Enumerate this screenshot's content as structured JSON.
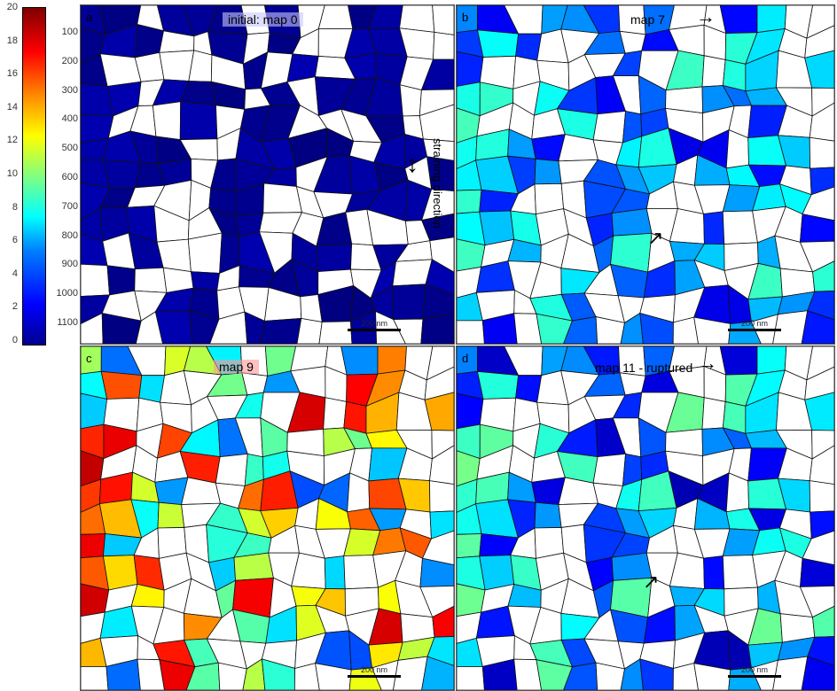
{
  "colorbar": {
    "ticks": [
      "20",
      "18",
      "16",
      "14",
      "12",
      "10",
      "8",
      "6",
      "4",
      "2",
      "0"
    ],
    "min": 0,
    "max": 20
  },
  "y_axis": {
    "ticks": [
      "100",
      "200",
      "300",
      "400",
      "500",
      "600",
      "700",
      "800",
      "900",
      "1000",
      "1100"
    ]
  },
  "panels": [
    {
      "label": "a",
      "title": "initial: map 0",
      "scale": "200 nm",
      "annotation": "straining direction",
      "level": [
        0,
        1
      ]
    },
    {
      "label": "b",
      "title": "map 7",
      "scale": "200 nm",
      "level": [
        2,
        9
      ]
    },
    {
      "label": "c",
      "title": "map 9",
      "scale": "200 nm",
      "level": [
        4,
        19
      ]
    },
    {
      "label": "d",
      "title": "map 11 - ruptured",
      "scale": "200 nm",
      "level": [
        1,
        10
      ]
    }
  ]
}
